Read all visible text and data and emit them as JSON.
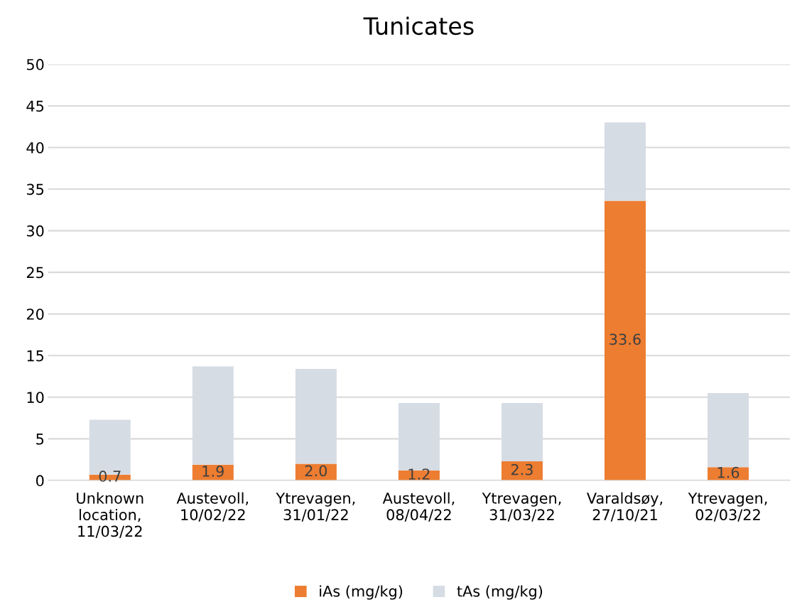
{
  "chart_data": {
    "type": "bar",
    "title": "Tunicates",
    "categories": [
      "Unknown\nlocation,\n11/03/22",
      "Austevoll,\n10/02/22",
      "Ytrevagen,\n31/01/22",
      "Austevoll,\n08/04/22",
      "Ytrevagen,\n31/03/22",
      "Varaldsøy,\n27/10/21",
      "Ytrevagen,\n02/03/22"
    ],
    "stacked": true,
    "series": [
      {
        "name": "iAs (mg/kg)",
        "color": "#ed7d31",
        "values": [
          0.7,
          1.9,
          2.0,
          1.2,
          2.3,
          33.6,
          1.6
        ],
        "value_labels": [
          "0.7",
          "1.9",
          "2.0",
          "1.2",
          "2.3",
          "33.6",
          "1.6"
        ]
      },
      {
        "name": "tAs (mg/kg)",
        "color": "#d6dce4",
        "values": [
          6.6,
          11.8,
          11.4,
          8.1,
          7.0,
          9.4,
          8.9
        ]
      }
    ],
    "ylim": [
      0,
      50
    ],
    "yticks": [
      0,
      5,
      10,
      15,
      20,
      25,
      30,
      35,
      40,
      45,
      50
    ],
    "grid": "y",
    "legend": "bottom"
  }
}
